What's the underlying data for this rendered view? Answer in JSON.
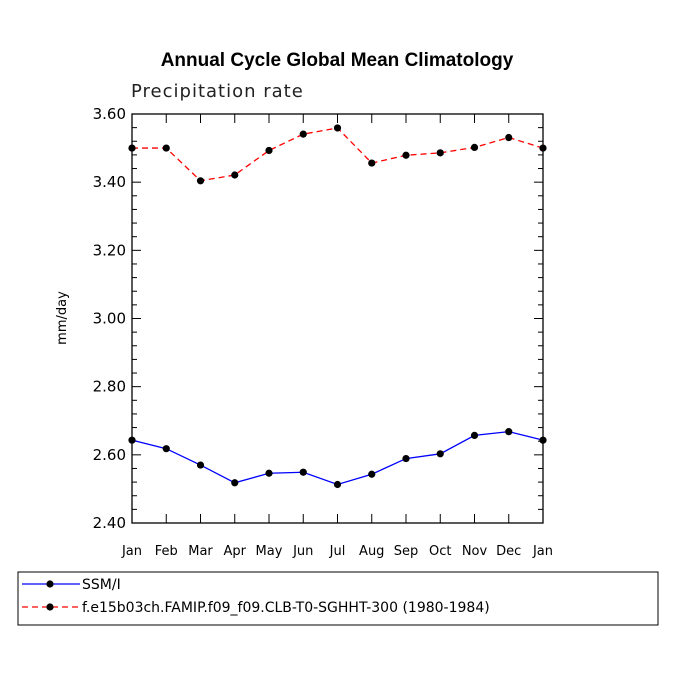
{
  "chart_data": {
    "type": "line",
    "title": "Annual Cycle Global Mean Climatology",
    "subtitle": "Precipitation rate",
    "xlabel": "",
    "ylabel": "mm/day",
    "categories": [
      "Jan",
      "Feb",
      "Mar",
      "Apr",
      "May",
      "Jun",
      "Jul",
      "Aug",
      "Sep",
      "Oct",
      "Nov",
      "Dec",
      "Jan"
    ],
    "ylim": [
      2.4,
      3.6
    ],
    "yticks": [
      "2.40",
      "2.60",
      "2.80",
      "3.00",
      "3.20",
      "3.40",
      "3.60"
    ],
    "ytick_values": [
      2.4,
      2.6,
      2.8,
      3.0,
      3.2,
      3.4,
      3.6
    ],
    "grid": false,
    "legend_position": "bottom-left",
    "series": [
      {
        "name": "SSM/I",
        "color": "#0000ff",
        "dash": "solid",
        "marker": "filled-circle",
        "values": [
          2.643,
          2.618,
          2.57,
          2.518,
          2.546,
          2.549,
          2.513,
          2.543,
          2.589,
          2.603,
          2.657,
          2.668,
          2.643
        ]
      },
      {
        "name": "f.e15b03ch.FAMIP.f09_f09.CLB-T0-SGHHT-300 (1980-1984)",
        "color": "#ff0000",
        "dash": "dashed",
        "marker": "filled-circle",
        "values": [
          3.5,
          3.5,
          3.404,
          3.421,
          3.493,
          3.541,
          3.559,
          3.456,
          3.479,
          3.486,
          3.502,
          3.531,
          3.5
        ]
      }
    ]
  }
}
